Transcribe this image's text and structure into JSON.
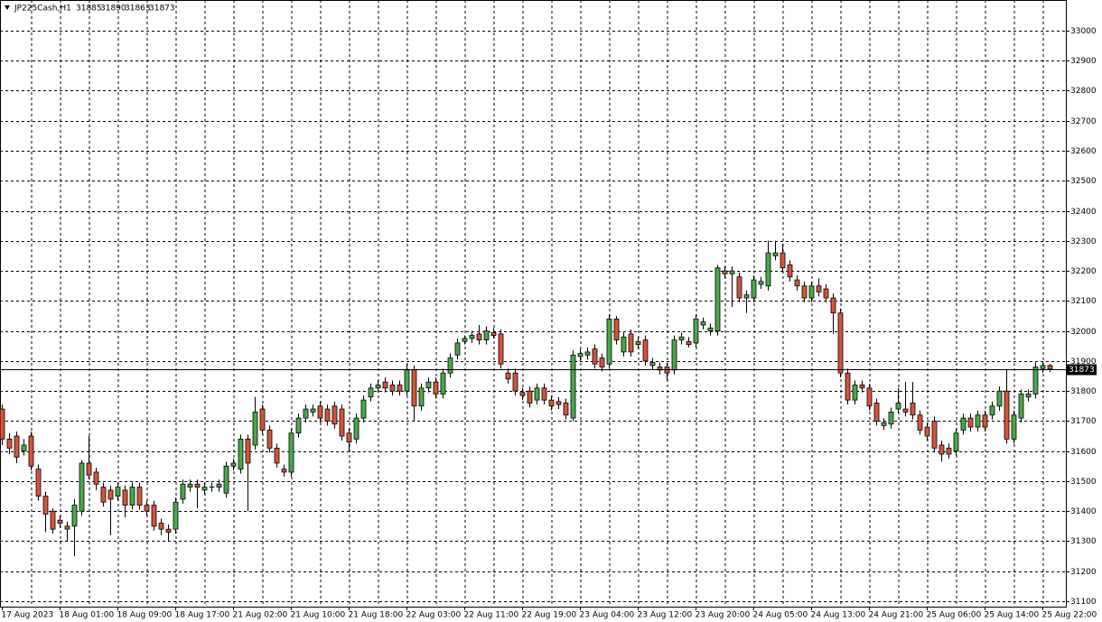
{
  "chart_data": {
    "type": "candlestick",
    "symbol": "JP225Cash,H1",
    "categories": [
      "17 Aug 2023",
      null,
      null,
      null,
      null,
      null,
      null,
      null,
      "18 Aug 01:00",
      null,
      null,
      null,
      null,
      null,
      null,
      null,
      "18 Aug 09:00",
      null,
      null,
      null,
      null,
      null,
      null,
      null,
      "18 Aug 17:00",
      null,
      null,
      null,
      null,
      null,
      null,
      null,
      "21 Aug 02:00",
      null,
      null,
      null,
      null,
      null,
      null,
      null,
      "21 Aug 10:00",
      null,
      null,
      null,
      null,
      null,
      null,
      null,
      "21 Aug 18:00",
      null,
      null,
      null,
      null,
      null,
      null,
      null,
      "22 Aug 03:00",
      null,
      null,
      null,
      null,
      null,
      null,
      null,
      "22 Aug 11:00",
      null,
      null,
      null,
      null,
      null,
      null,
      null,
      "22 Aug 19:00",
      null,
      null,
      null,
      null,
      null,
      null,
      null,
      "23 Aug 04:00",
      null,
      null,
      null,
      null,
      null,
      null,
      null,
      "23 Aug 12:00",
      null,
      null,
      null,
      null,
      null,
      null,
      null,
      "23 Aug 20:00",
      null,
      null,
      null,
      null,
      null,
      null,
      null,
      "24 Aug 05:00",
      null,
      null,
      null,
      null,
      null,
      null,
      null,
      "24 Aug 13:00",
      null,
      null,
      null,
      null,
      null,
      null,
      null,
      "24 Aug 21:00",
      null,
      null,
      null,
      null,
      null,
      null,
      null,
      "25 Aug 06:00",
      null,
      null,
      null,
      null,
      null,
      null,
      null,
      "25 Aug 14:00",
      null,
      null,
      null,
      null,
      null,
      null,
      null,
      "25 Aug 22:00",
      null
    ],
    "open": [
      31740,
      31640,
      31650,
      31600,
      31650,
      31540,
      31450,
      31400,
      31370,
      31350,
      31350,
      31400,
      31560,
      31530,
      31480,
      31470,
      31450,
      31470,
      31420,
      31480,
      31420,
      31420,
      31360,
      31340,
      31340,
      31440,
      31480,
      31490,
      31470,
      31480,
      31480,
      31460,
      31550,
      31540,
      31640,
      31620,
      31740,
      31670,
      31610,
      31540,
      31530,
      31660,
      31710,
      31730,
      31750,
      31740,
      31750,
      31740,
      31660,
      31640,
      31710,
      31780,
      31810,
      31830,
      31820,
      31820,
      31800,
      31870,
      31750,
      31810,
      31830,
      31790,
      31860,
      31920,
      31965,
      31975,
      31990,
      31970,
      31995,
      31990,
      31860,
      31860,
      31795,
      31800,
      31770,
      31810,
      31770,
      31765,
      31760,
      31710,
      31915,
      31920,
      31940,
      31910,
      31890,
      32040,
      31930,
      31990,
      31955,
      31970,
      31885,
      31880,
      31880,
      31870,
      31970,
      31965,
      31960,
      32020,
      32000,
      32000,
      32200,
      32190,
      32180,
      32110,
      32110,
      32155,
      32150,
      32250,
      32260,
      32220,
      32170,
      32150,
      32110,
      32150,
      32140,
      32110,
      32060,
      31860,
      31770,
      31820,
      31810,
      31760,
      31685,
      31690,
      31740,
      31740,
      31760,
      31720,
      31680,
      31700,
      31620,
      31610,
      31600,
      31670,
      31710,
      31680,
      31720,
      31720,
      31750,
      31800,
      31640,
      31710,
      31780,
      31790,
      31875,
      31885
    ],
    "high": [
      31755,
      31660,
      31665,
      31640,
      31665,
      31555,
      31465,
      31410,
      31385,
      31365,
      31440,
      31570,
      31650,
      31545,
      31495,
      31485,
      31495,
      31485,
      31495,
      31495,
      31435,
      31435,
      31375,
      31355,
      31445,
      31505,
      31505,
      31505,
      31495,
      31495,
      31505,
      31565,
      31575,
      31655,
      31655,
      31780,
      31755,
      31685,
      31625,
      31555,
      31675,
      31725,
      31755,
      31755,
      31765,
      31755,
      31765,
      31755,
      31675,
      31725,
      31785,
      31825,
      31835,
      31845,
      31835,
      31835,
      31890,
      31885,
      31825,
      31845,
      31845,
      31875,
      31925,
      31975,
      31985,
      32000,
      32020,
      32015,
      32010,
      32005,
      31875,
      31875,
      31810,
      31815,
      31825,
      31825,
      31785,
      31780,
      31775,
      31935,
      31940,
      31945,
      31955,
      31925,
      32055,
      32050,
      31995,
      32005,
      31980,
      31985,
      31910,
      31895,
      31895,
      31985,
      31995,
      31980,
      32055,
      32045,
      32025,
      32220,
      32215,
      32215,
      32195,
      32135,
      32185,
      32180,
      32300,
      32300,
      32290,
      32235,
      32185,
      32165,
      32165,
      32175,
      32155,
      32125,
      32075,
      31875,
      31835,
      31835,
      31825,
      31775,
      31710,
      31745,
      31810,
      31830,
      31830,
      31735,
      31695,
      31715,
      31635,
      31625,
      31675,
      31725,
      31725,
      31735,
      31735,
      31765,
      31815,
      31870,
      31735,
      31805,
      31805,
      31895,
      31900,
      31890
    ],
    "low": [
      31620,
      31590,
      31560,
      31585,
      31535,
      31435,
      31330,
      31325,
      31345,
      31300,
      31250,
      31385,
      31505,
      31470,
      31415,
      31320,
      31435,
      31380,
      31405,
      31405,
      31385,
      31335,
      31320,
      31300,
      31325,
      31425,
      31465,
      31410,
      31455,
      31465,
      31465,
      31445,
      31535,
      31525,
      31400,
      31605,
      31655,
      31595,
      31545,
      31515,
      31515,
      31645,
      31695,
      31715,
      31695,
      31685,
      31675,
      31635,
      31600,
      31625,
      31695,
      31765,
      31795,
      31795,
      31785,
      31785,
      31785,
      31700,
      31735,
      31795,
      31775,
      31775,
      31845,
      31905,
      31955,
      31960,
      31955,
      31955,
      31975,
      31875,
      31825,
      31785,
      31770,
      31745,
      31755,
      31755,
      31735,
      31740,
      31705,
      31700,
      31900,
      31905,
      31875,
      31865,
      31875,
      31955,
      31915,
      31915,
      31940,
      31885,
      31870,
      31855,
      31835,
      31855,
      31955,
      31945,
      31945,
      32005,
      31985,
      31985,
      32175,
      32080,
      32095,
      32060,
      32095,
      32140,
      32135,
      32235,
      32195,
      32165,
      32135,
      32095,
      32095,
      32115,
      32095,
      31990,
      31845,
      31755,
      31755,
      31795,
      31735,
      31685,
      31670,
      31675,
      31725,
      31715,
      31705,
      31655,
      31635,
      31595,
      31565,
      31575,
      31585,
      31655,
      31665,
      31665,
      31665,
      31705,
      31735,
      31625,
      31625,
      31695,
      31765,
      31775,
      31860,
      31863
    ],
    "close": [
      31640,
      31610,
      31580,
      31620,
      31550,
      31450,
      31390,
      31340,
      31360,
      31340,
      31420,
      31560,
      31520,
      31490,
      31430,
      31440,
      31480,
      31420,
      31480,
      31420,
      31400,
      31350,
      31340,
      31330,
      31430,
      31490,
      31490,
      31480,
      31480,
      31480,
      31490,
      31550,
      31560,
      31640,
      31560,
      31730,
      31670,
      31610,
      31560,
      31530,
      31660,
      31710,
      31740,
      31740,
      31710,
      31700,
      31690,
      31650,
      31630,
      31710,
      31770,
      31810,
      31820,
      31810,
      31800,
      31800,
      31870,
      31750,
      31810,
      31830,
      31790,
      31860,
      31910,
      31960,
      31975,
      31985,
      31970,
      32000,
      31985,
      31890,
      31840,
      31800,
      31785,
      31760,
      31810,
      31770,
      31750,
      31755,
      31720,
      31920,
      31925,
      31930,
      31890,
      31880,
      32040,
      31970,
      31980,
      31930,
      31965,
      31900,
      31895,
      31870,
      31860,
      31970,
      31980,
      31955,
      32040,
      32030,
      32010,
      32210,
      32190,
      32200,
      32110,
      32120,
      32170,
      32165,
      32260,
      32260,
      32210,
      32180,
      32150,
      32110,
      32150,
      32130,
      32110,
      32060,
      31860,
      31770,
      31820,
      31810,
      31750,
      31700,
      31695,
      31730,
      31760,
      31730,
      31720,
      31670,
      31650,
      31610,
      31590,
      31590,
      31660,
      31710,
      31680,
      31720,
      31680,
      31750,
      31800,
      31640,
      31720,
      31790,
      31790,
      31880,
      31885,
      31873
    ],
    "up_color": "#4aa84a",
    "down_color": "#d3553a",
    "wick_color": "#000000",
    "ylim": [
      31082,
      33102
    ],
    "yticks": [
      31100,
      31200,
      31300,
      31400,
      31500,
      31600,
      31700,
      31800,
      31900,
      32000,
      32100,
      32200,
      32300,
      32400,
      32500,
      32600,
      32700,
      32800,
      32900,
      33000
    ],
    "grid": true
  }
}
